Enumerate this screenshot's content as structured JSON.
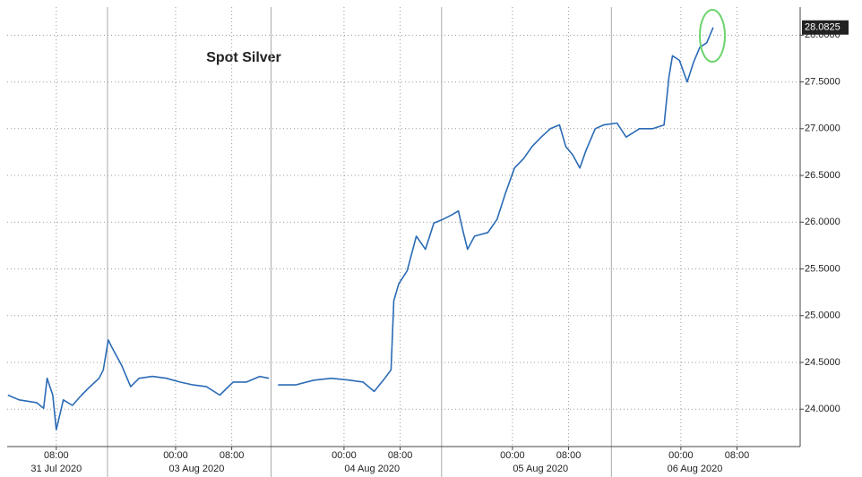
{
  "chart_data": {
    "type": "line",
    "title": "Spot Silver",
    "x": [
      1.1,
      2.7,
      5.2,
      6.2,
      6.7,
      7.5,
      8,
      9,
      10.3,
      11.6,
      12.8,
      14.1,
      14.7,
      15.4,
      16,
      17.3,
      18.6,
      19.8,
      21.7,
      23.7,
      25.6,
      27.5,
      29.4,
      31.3,
      33.2,
      35.1,
      37,
      38.3,
      38.9,
      39.6,
      42.1,
      44.7,
      47.2,
      49.8,
      51.7,
      53.3,
      54.8,
      55.7,
      56.1,
      56.8,
      58,
      59.3,
      60.6,
      61.8,
      63.1,
      64.4,
      65.3,
      66,
      66.6,
      67.6,
      69.5,
      70.8,
      72,
      73.3,
      74.6,
      75.8,
      77.1,
      78.4,
      79.7,
      80.6,
      81.6,
      82.6,
      83.5,
      84.8,
      86,
      87.9,
      89.2,
      91.1,
      93,
      94.6,
      95.3,
      95.8,
      96.8,
      97.9,
      98.8,
      99.7,
      100.7,
      101.6
    ],
    "series": [
      {
        "name": "Spot Silver",
        "color": "#2a6bb5",
        "values": [
          24.15,
          24.1,
          24.07,
          24.01,
          24.33,
          24.15,
          23.78,
          24.1,
          24.04,
          24.15,
          24.24,
          24.33,
          24.42,
          24.74,
          24.65,
          24.47,
          24.24,
          24.33,
          24.35,
          24.33,
          24.29,
          24.26,
          24.24,
          24.15,
          24.29,
          24.29,
          24.35,
          24.33,
          null,
          24.26,
          24.26,
          24.31,
          24.33,
          24.31,
          24.29,
          24.19,
          24.33,
          24.42,
          25.16,
          25.34,
          25.48,
          25.85,
          25.71,
          25.99,
          26.03,
          26.08,
          26.12,
          25.89,
          25.71,
          25.85,
          25.89,
          26.03,
          26.31,
          26.58,
          26.68,
          26.81,
          26.91,
          27.0,
          27.04,
          26.81,
          26.72,
          26.58,
          26.77,
          27.0,
          27.04,
          27.06,
          26.91,
          27.0,
          27.0,
          27.04,
          27.55,
          27.78,
          27.73,
          27.5,
          27.71,
          27.87,
          27.92,
          28.0825
        ]
      }
    ],
    "xlim": [
      1,
      114
    ],
    "xticks": [
      {
        "value": 8,
        "label": "08:00"
      },
      {
        "value": 25,
        "label": "00:00"
      },
      {
        "value": 33,
        "label": "08:00"
      },
      {
        "value": 49,
        "label": "00:00"
      },
      {
        "value": 57,
        "label": "08:00"
      },
      {
        "value": 73,
        "label": "00:00"
      },
      {
        "value": 81,
        "label": "08:00"
      },
      {
        "value": 97,
        "label": "00:00"
      },
      {
        "value": 105,
        "label": "08:00"
      }
    ],
    "day_labels": [
      {
        "value": 8,
        "label": "31 Jul 2020"
      },
      {
        "value": 28,
        "label": "03 Aug 2020"
      },
      {
        "value": 53,
        "label": "04 Aug 2020"
      },
      {
        "value": 77,
        "label": "05 Aug 2020"
      },
      {
        "value": 99,
        "label": "06 Aug 2020"
      }
    ],
    "day_breaks": [
      15.3,
      38.6,
      62.9,
      87.1
    ],
    "ylim": [
      23.6,
      28.3
    ],
    "yticks": [
      {
        "value": 24,
        "label": "24.0000"
      },
      {
        "value": 24.5,
        "label": "24.5000"
      },
      {
        "value": 25,
        "label": "25.0000"
      },
      {
        "value": 25.5,
        "label": "25.5000"
      },
      {
        "value": 26,
        "label": "26.0000"
      },
      {
        "value": 26.5,
        "label": "26.5000"
      },
      {
        "value": 27,
        "label": "27.0000"
      },
      {
        "value": 27.5,
        "label": "27.5000"
      },
      {
        "value": 28,
        "label": "28.0000"
      }
    ],
    "last_value": {
      "value": 28.0825,
      "label": "28.0825"
    },
    "grid": true
  }
}
